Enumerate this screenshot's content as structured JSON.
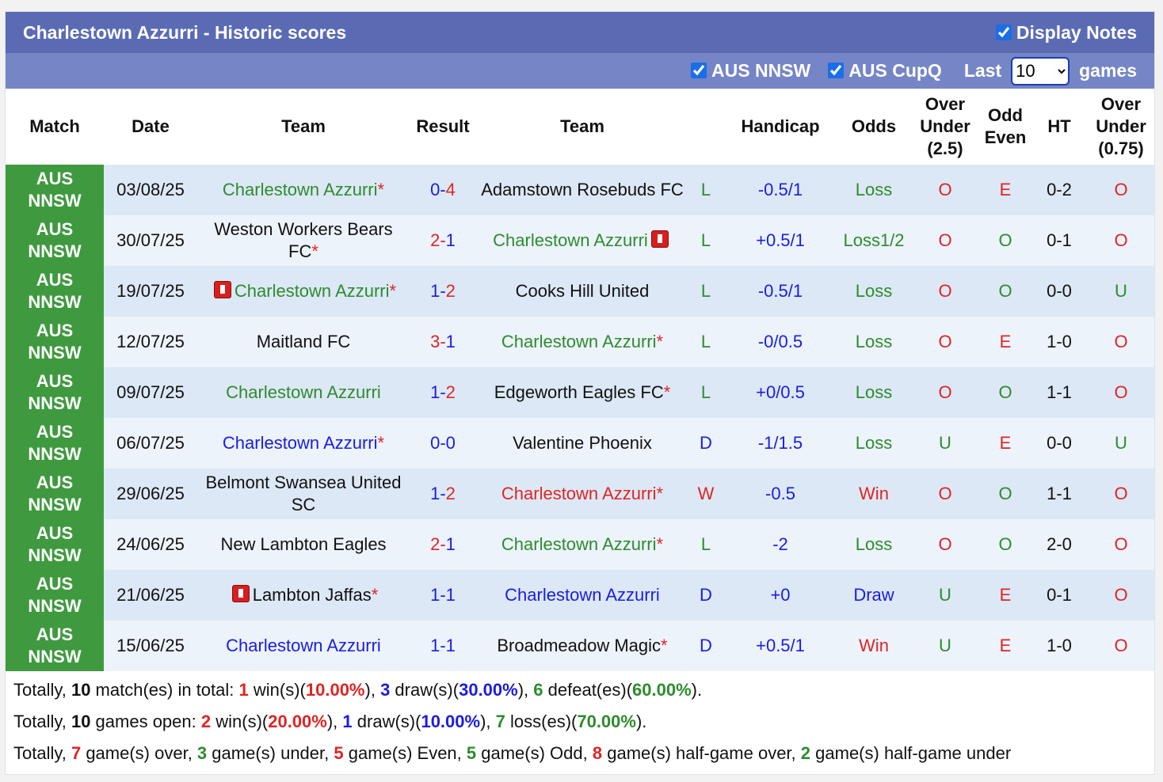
{
  "header": {
    "title": "Charlestown Azzurri - Historic scores",
    "display_notes": "Display Notes"
  },
  "filters": {
    "options": [
      "AUS NNSW",
      "AUS CupQ"
    ],
    "last_label": "Last",
    "last_value": "10",
    "games_label": "games"
  },
  "table": {
    "columns": [
      "Match",
      "Date",
      "Team",
      "Result",
      "Team",
      null,
      "Handicap",
      "Odds",
      "Over Under (2.5)",
      "Odd Even",
      "HT",
      "Over Under (0.75)"
    ],
    "rows": [
      {
        "match": "AUS NNSW",
        "date": "03/08/25",
        "home": {
          "name": "Charlestown Azzurri",
          "color": "green",
          "note": "*"
        },
        "result": "0-4",
        "away": {
          "name": "Adamstown Rosebuds FC",
          "color": "black"
        },
        "wl": {
          "text": "L",
          "color": "green"
        },
        "handicap": "-0.5/1",
        "odds": {
          "text": "Loss",
          "color": "green"
        },
        "ou": {
          "text": "O",
          "color": "red"
        },
        "oe": {
          "text": "E",
          "color": "red"
        },
        "ht": "0-2",
        "ou2": {
          "text": "O",
          "color": "red"
        }
      },
      {
        "match": "AUS NNSW",
        "date": "30/07/25",
        "home": {
          "name": "Weston Workers Bears FC",
          "color": "black",
          "note": "*"
        },
        "result": "2-1",
        "away": {
          "name": "Charlestown Azzurri",
          "color": "green",
          "card": "after"
        },
        "wl": {
          "text": "L",
          "color": "green"
        },
        "handicap": "+0.5/1",
        "odds": {
          "text": "Loss1/2",
          "color": "green"
        },
        "ou": {
          "text": "O",
          "color": "red"
        },
        "oe": {
          "text": "O",
          "color": "green"
        },
        "ht": "0-1",
        "ou2": {
          "text": "O",
          "color": "red"
        }
      },
      {
        "match": "AUS NNSW",
        "date": "19/07/25",
        "home": {
          "name": "Charlestown Azzurri",
          "color": "green",
          "note": "*",
          "card": "before"
        },
        "result": "1-2",
        "away": {
          "name": "Cooks Hill United",
          "color": "black"
        },
        "wl": {
          "text": "L",
          "color": "green"
        },
        "handicap": "-0.5/1",
        "odds": {
          "text": "Loss",
          "color": "green"
        },
        "ou": {
          "text": "O",
          "color": "red"
        },
        "oe": {
          "text": "O",
          "color": "green"
        },
        "ht": "0-0",
        "ou2": {
          "text": "U",
          "color": "green"
        }
      },
      {
        "match": "AUS NNSW",
        "date": "12/07/25",
        "home": {
          "name": "Maitland FC",
          "color": "black"
        },
        "result": "3-1",
        "away": {
          "name": "Charlestown Azzurri",
          "color": "green",
          "note": "*"
        },
        "wl": {
          "text": "L",
          "color": "green"
        },
        "handicap": "-0/0.5",
        "odds": {
          "text": "Loss",
          "color": "green"
        },
        "ou": {
          "text": "O",
          "color": "red"
        },
        "oe": {
          "text": "E",
          "color": "red"
        },
        "ht": "1-0",
        "ou2": {
          "text": "O",
          "color": "red"
        }
      },
      {
        "match": "AUS NNSW",
        "date": "09/07/25",
        "home": {
          "name": "Charlestown Azzurri",
          "color": "green"
        },
        "result": "1-2",
        "away": {
          "name": "Edgeworth Eagles FC",
          "color": "black",
          "note": "*"
        },
        "wl": {
          "text": "L",
          "color": "green"
        },
        "handicap": "+0/0.5",
        "odds": {
          "text": "Loss",
          "color": "green"
        },
        "ou": {
          "text": "O",
          "color": "red"
        },
        "oe": {
          "text": "O",
          "color": "green"
        },
        "ht": "1-1",
        "ou2": {
          "text": "O",
          "color": "red"
        }
      },
      {
        "match": "AUS NNSW",
        "date": "06/07/25",
        "home": {
          "name": "Charlestown Azzurri",
          "color": "blue",
          "note": "*"
        },
        "result": "0-0",
        "away": {
          "name": "Valentine Phoenix",
          "color": "black"
        },
        "wl": {
          "text": "D",
          "color": "blue"
        },
        "handicap": "-1/1.5",
        "odds": {
          "text": "Loss",
          "color": "green"
        },
        "ou": {
          "text": "U",
          "color": "green"
        },
        "oe": {
          "text": "E",
          "color": "red"
        },
        "ht": "0-0",
        "ou2": {
          "text": "U",
          "color": "green"
        }
      },
      {
        "match": "AUS NNSW",
        "date": "29/06/25",
        "home": {
          "name": "Belmont Swansea United SC",
          "color": "black"
        },
        "result": "1-2",
        "away": {
          "name": "Charlestown Azzurri",
          "color": "red",
          "note": "*"
        },
        "wl": {
          "text": "W",
          "color": "red"
        },
        "handicap": "-0.5",
        "odds": {
          "text": "Win",
          "color": "red"
        },
        "ou": {
          "text": "O",
          "color": "red"
        },
        "oe": {
          "text": "O",
          "color": "green"
        },
        "ht": "1-1",
        "ou2": {
          "text": "O",
          "color": "red"
        }
      },
      {
        "match": "AUS NNSW",
        "date": "24/06/25",
        "home": {
          "name": "New Lambton Eagles",
          "color": "black"
        },
        "result": "2-1",
        "away": {
          "name": "Charlestown Azzurri",
          "color": "green",
          "note": "*"
        },
        "wl": {
          "text": "L",
          "color": "green"
        },
        "handicap": "-2",
        "odds": {
          "text": "Loss",
          "color": "green"
        },
        "ou": {
          "text": "O",
          "color": "red"
        },
        "oe": {
          "text": "O",
          "color": "green"
        },
        "ht": "2-0",
        "ou2": {
          "text": "O",
          "color": "red"
        }
      },
      {
        "match": "AUS NNSW",
        "date": "21/06/25",
        "home": {
          "name": "Lambton Jaffas",
          "color": "black",
          "note": "*",
          "card": "before"
        },
        "result": "1-1",
        "away": {
          "name": "Charlestown Azzurri",
          "color": "blue"
        },
        "wl": {
          "text": "D",
          "color": "blue"
        },
        "handicap": "+0",
        "odds": {
          "text": "Draw",
          "color": "blue"
        },
        "ou": {
          "text": "U",
          "color": "green"
        },
        "oe": {
          "text": "E",
          "color": "red"
        },
        "ht": "0-1",
        "ou2": {
          "text": "O",
          "color": "red"
        }
      },
      {
        "match": "AUS NNSW",
        "date": "15/06/25",
        "home": {
          "name": "Charlestown Azzurri",
          "color": "blue"
        },
        "result": "1-1",
        "away": {
          "name": "Broadmeadow Magic",
          "color": "black",
          "note": "*"
        },
        "wl": {
          "text": "D",
          "color": "blue"
        },
        "handicap": "+0.5/1",
        "odds": {
          "text": "Win",
          "color": "red"
        },
        "ou": {
          "text": "U",
          "color": "green"
        },
        "oe": {
          "text": "E",
          "color": "red"
        },
        "ht": "1-0",
        "ou2": {
          "text": "O",
          "color": "red"
        }
      }
    ]
  },
  "summary": [
    [
      {
        "text": "Totally, "
      },
      {
        "text": "10",
        "style": "bold"
      },
      {
        "text": " match(es) in total: "
      },
      {
        "text": "1",
        "style": "red"
      },
      {
        "text": " win(s)("
      },
      {
        "text": "10.00%",
        "style": "red"
      },
      {
        "text": "), "
      },
      {
        "text": "3",
        "style": "blue"
      },
      {
        "text": " draw(s)("
      },
      {
        "text": "30.00%",
        "style": "blue"
      },
      {
        "text": "), "
      },
      {
        "text": "6",
        "style": "green"
      },
      {
        "text": " defeat(es)("
      },
      {
        "text": "60.00%",
        "style": "green"
      },
      {
        "text": ")."
      }
    ],
    [
      {
        "text": "Totally, "
      },
      {
        "text": "10",
        "style": "bold"
      },
      {
        "text": " games open: "
      },
      {
        "text": "2",
        "style": "red"
      },
      {
        "text": " win(s)("
      },
      {
        "text": "20.00%",
        "style": "red"
      },
      {
        "text": "), "
      },
      {
        "text": "1",
        "style": "blue"
      },
      {
        "text": " draw(s)("
      },
      {
        "text": "10.00%",
        "style": "blue"
      },
      {
        "text": "), "
      },
      {
        "text": "7",
        "style": "green"
      },
      {
        "text": " loss(es)("
      },
      {
        "text": "70.00%",
        "style": "green"
      },
      {
        "text": ")."
      }
    ],
    [
      {
        "text": "Totally, "
      },
      {
        "text": "7",
        "style": "red"
      },
      {
        "text": " game(s) over, "
      },
      {
        "text": "3",
        "style": "green"
      },
      {
        "text": " game(s) under, "
      },
      {
        "text": "5",
        "style": "red"
      },
      {
        "text": " game(s) Even, "
      },
      {
        "text": "5",
        "style": "green"
      },
      {
        "text": " game(s) Odd, "
      },
      {
        "text": "8",
        "style": "red"
      },
      {
        "text": " game(s) half-game over, "
      },
      {
        "text": "2",
        "style": "green"
      },
      {
        "text": " game(s) half-game under"
      }
    ]
  ]
}
